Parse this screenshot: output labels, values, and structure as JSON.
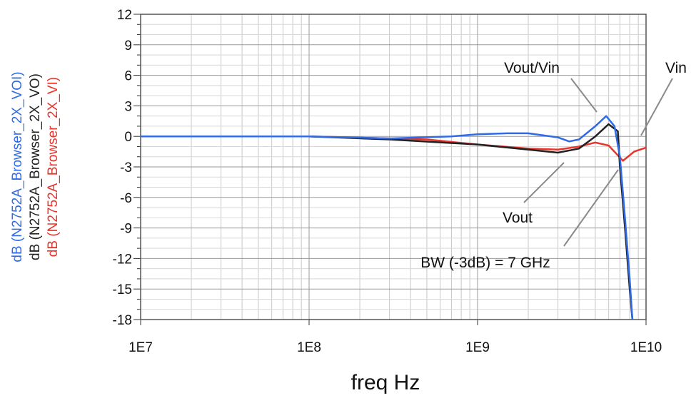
{
  "chart_data": {
    "type": "line",
    "xlabel": "freq Hz",
    "xscale": "log",
    "xlim": [
      10000000,
      10000000000
    ],
    "xticks": [
      {
        "value": 10000000,
        "label": "1E7"
      },
      {
        "value": 100000000,
        "label": "1E8"
      },
      {
        "value": 1000000000,
        "label": "1E9"
      },
      {
        "value": 10000000000,
        "label": "1E10"
      }
    ],
    "ylim": [
      -18,
      12
    ],
    "yticks": [
      12,
      9,
      6,
      3,
      0,
      -3,
      -6,
      -9,
      -12,
      -15,
      -18
    ],
    "grid": true,
    "minor_grid": true,
    "series": [
      {
        "name": "dB (N2752A_Browser_2X_VOI)",
        "color": "#2f6be6",
        "x": [
          10000000,
          100000000,
          300000000,
          700000000,
          1000000000,
          1500000000,
          2000000000,
          3000000000,
          3500000000,
          4000000000,
          5000000000,
          5800000000,
          6500000000,
          7000000000,
          7500000000,
          8000000000,
          8300000000
        ],
        "values": [
          0,
          0,
          -0.2,
          0,
          0.2,
          0.3,
          0.3,
          -0.1,
          -0.5,
          -0.3,
          1.0,
          2.0,
          1.0,
          -2,
          -8,
          -14,
          -18
        ]
      },
      {
        "name": "dB (N2752A_Browser_2X_VO)",
        "color": "#222222",
        "x": [
          10000000,
          100000000,
          300000000,
          1000000000,
          2000000000,
          3000000000,
          4000000000,
          5000000000,
          6000000000,
          6800000000,
          7000000000,
          7500000000,
          8000000000,
          8300000000
        ],
        "values": [
          0,
          0,
          -0.3,
          -0.8,
          -1.3,
          -1.6,
          -1.2,
          0,
          1.2,
          0.5,
          -3,
          -9,
          -15,
          -18
        ]
      },
      {
        "name": "dB (N2752A_Browser_2X_VI)",
        "color": "#e8342a",
        "x": [
          10000000,
          100000000,
          500000000,
          1000000000,
          2000000000,
          3000000000,
          4000000000,
          5000000000,
          6000000000,
          7300000000,
          8500000000,
          10000000000
        ],
        "values": [
          0,
          0,
          -0.3,
          -0.8,
          -1.2,
          -1.3,
          -1.0,
          -0.6,
          -0.9,
          -2.4,
          -1.5,
          -1.1
        ]
      }
    ],
    "annotations": [
      "Vout/Vin",
      "Vin",
      "Vout",
      "BW (-3dB) = 7 GHz"
    ]
  }
}
